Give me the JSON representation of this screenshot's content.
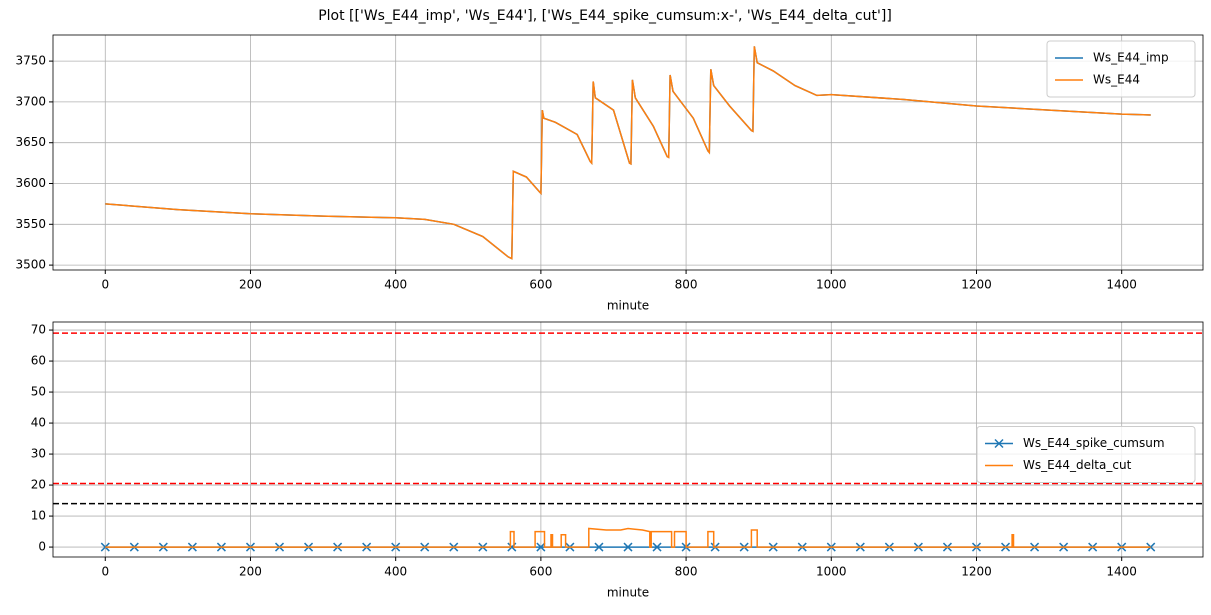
{
  "title": "Plot [['Ws_E44_imp', 'Ws_E44'], ['Ws_E44_spike_cumsum:x-', 'Ws_E44_delta_cut']]",
  "chart_data": [
    {
      "type": "line",
      "x_label": "minute",
      "xlim": [
        -72,
        1512
      ],
      "xticks": [
        0,
        200,
        400,
        600,
        800,
        1000,
        1200,
        1400
      ],
      "ylim": [
        3494,
        3782
      ],
      "yticks": [
        3500,
        3550,
        3600,
        3650,
        3700,
        3750
      ],
      "grid": true,
      "legend": "upper right",
      "series": [
        {
          "name": "Ws_E44_imp",
          "color": "#1f77b4",
          "x": [
            0,
            100,
            200,
            300,
            400,
            440,
            480,
            520,
            555,
            560,
            562,
            580,
            598,
            600,
            602,
            604,
            620,
            650,
            668,
            670,
            672,
            675,
            700,
            722,
            724,
            726,
            730,
            755,
            774,
            776,
            778,
            782,
            810,
            830,
            832,
            834,
            838,
            860,
            890,
            892,
            894,
            898,
            920,
            950,
            980,
            1000,
            1100,
            1200,
            1300,
            1400,
            1440
          ],
          "values": [
            3575,
            3568,
            3563,
            3560,
            3558,
            3556,
            3550,
            3535,
            3510,
            3508,
            3615,
            3608,
            3590,
            3588,
            3690,
            3680,
            3675,
            3660,
            3627,
            3625,
            3725,
            3705,
            3690,
            3625,
            3624,
            3727,
            3705,
            3670,
            3633,
            3632,
            3733,
            3713,
            3680,
            3640,
            3638,
            3740,
            3720,
            3695,
            3665,
            3664,
            3768,
            3748,
            3738,
            3720,
            3708,
            3709,
            3703,
            3695,
            3690,
            3685,
            3684
          ]
        },
        {
          "name": "Ws_E44",
          "color": "#ff7f0e",
          "x": [
            0,
            100,
            200,
            300,
            400,
            440,
            480,
            520,
            555,
            560,
            562,
            580,
            598,
            600,
            602,
            604,
            620,
            650,
            668,
            670,
            672,
            675,
            700,
            722,
            724,
            726,
            730,
            755,
            774,
            776,
            778,
            782,
            810,
            830,
            832,
            834,
            838,
            860,
            890,
            892,
            894,
            898,
            920,
            950,
            980,
            1000,
            1100,
            1200,
            1300,
            1400,
            1440
          ],
          "values": [
            3575,
            3568,
            3563,
            3560,
            3558,
            3556,
            3550,
            3535,
            3510,
            3508,
            3615,
            3608,
            3590,
            3588,
            3690,
            3680,
            3675,
            3660,
            3627,
            3625,
            3725,
            3705,
            3690,
            3625,
            3624,
            3727,
            3705,
            3670,
            3633,
            3632,
            3733,
            3713,
            3680,
            3640,
            3638,
            3740,
            3720,
            3695,
            3665,
            3664,
            3768,
            3748,
            3738,
            3720,
            3708,
            3709,
            3703,
            3695,
            3690,
            3685,
            3684
          ]
        }
      ]
    },
    {
      "type": "line",
      "x_label": "minute",
      "xlim": [
        -72,
        1512
      ],
      "xticks": [
        0,
        200,
        400,
        600,
        800,
        1000,
        1200,
        1400
      ],
      "ylim": [
        -3.2,
        72.6
      ],
      "yticks": [
        0,
        10,
        20,
        30,
        40,
        50,
        60,
        70
      ],
      "grid": true,
      "legend": "center right",
      "hlines": [
        {
          "value": 69,
          "color": "red"
        },
        {
          "value": 20.5,
          "color": "red"
        },
        {
          "value": 14,
          "color": "black"
        }
      ],
      "series": [
        {
          "name": "Ws_E44_spike_cumsum",
          "color": "#1f77b4",
          "marker": "x",
          "x": [
            0,
            40,
            80,
            120,
            160,
            200,
            240,
            280,
            320,
            360,
            400,
            440,
            480,
            520,
            560,
            600,
            640,
            680,
            720,
            760,
            800,
            840,
            880,
            920,
            960,
            1000,
            1040,
            1080,
            1120,
            1160,
            1200,
            1240,
            1280,
            1320,
            1360,
            1400,
            1440
          ],
          "values": [
            0,
            0,
            0,
            0,
            0,
            0,
            0,
            0,
            0,
            0,
            0,
            0,
            0,
            0,
            0,
            0,
            0,
            0,
            0,
            0,
            0,
            0,
            0,
            0,
            0,
            0,
            0,
            0,
            0,
            0,
            0,
            0,
            0,
            0,
            0,
            0,
            0
          ]
        },
        {
          "name": "Ws_E44_delta_cut",
          "color": "#ff7f0e",
          "x": [
            0,
            558,
            558,
            563,
            563,
            592,
            592,
            605,
            605,
            614,
            614,
            616,
            616,
            628,
            628,
            634,
            634,
            666,
            666,
            690,
            710,
            720,
            740,
            750,
            750,
            752,
            752,
            780,
            780,
            784,
            784,
            800,
            800,
            830,
            830,
            838,
            838,
            890,
            890,
            898,
            898,
            1249,
            1249,
            1251,
            1251,
            1440
          ],
          "values": [
            0,
            0,
            5,
            5,
            0,
            0,
            5,
            5,
            0,
            0,
            4,
            4,
            0,
            0,
            4,
            4,
            0,
            0,
            6,
            5.5,
            5.5,
            6,
            5.5,
            5,
            0,
            0,
            5,
            5,
            0,
            0,
            5,
            5,
            0,
            0,
            5,
            5,
            0,
            0,
            5.5,
            5.5,
            0,
            0,
            4,
            4,
            0,
            0
          ]
        }
      ]
    }
  ]
}
